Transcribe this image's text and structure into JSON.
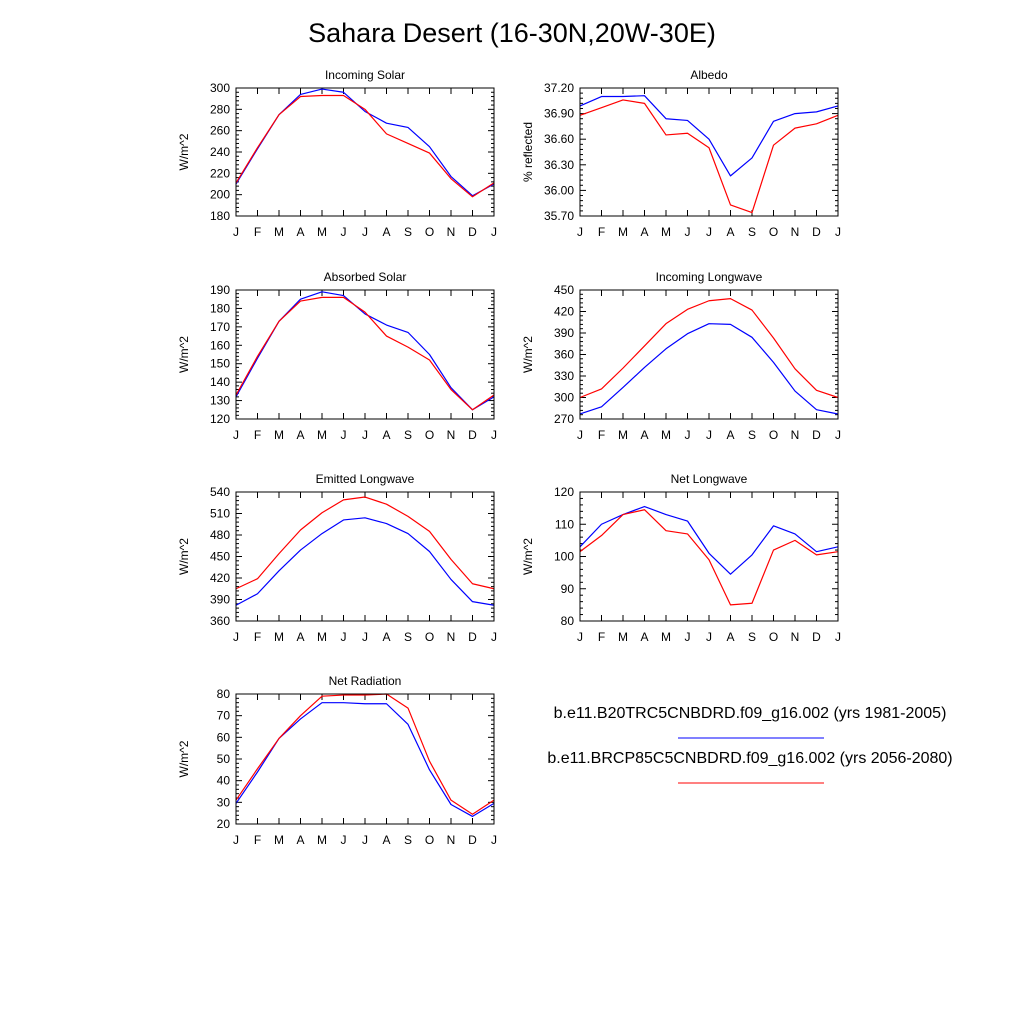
{
  "title": "Sahara Desert (16-30N,20W-30E)",
  "colors": {
    "series1": "#0000ff",
    "series2": "#ff0000",
    "axis": "#000000"
  },
  "legend": {
    "items": [
      {
        "label": "b.e11.B20TRC5CNBDRD.f09_g16.002 (yrs 1981-2005)",
        "color": "#0000ff"
      },
      {
        "label": "b.e11.BRCP85C5CNBDRD.f09_g16.002 (yrs 2056-2080)",
        "color": "#ff0000"
      }
    ]
  },
  "chart_data": [
    {
      "type": "line",
      "title": "Incoming Solar",
      "ylabel": "W/m^2",
      "x": [
        "J",
        "F",
        "M",
        "A",
        "M",
        "J",
        "J",
        "A",
        "S",
        "O",
        "N",
        "D",
        "J"
      ],
      "ylim": [
        180,
        300
      ],
      "yticks": [
        "180",
        "200",
        "220",
        "240",
        "260",
        "280",
        "300"
      ],
      "series": [
        {
          "name": "b.e11.B20TRC5CNBDRD.f09_g16.002 (yrs 1981-2005)",
          "color": "#0000ff",
          "values": [
            210,
            243,
            275,
            294,
            299,
            296,
            278,
            267,
            263,
            245,
            217,
            199,
            210
          ]
        },
        {
          "name": "b.e11.BRCP85C5CNBDRD.f09_g16.002 (yrs 2056-2080)",
          "color": "#ff0000",
          "values": [
            211,
            244,
            275,
            292,
            293,
            293,
            280,
            257,
            248,
            239,
            215,
            198,
            211
          ]
        }
      ]
    },
    {
      "type": "line",
      "title": "Albedo",
      "ylabel": "% reflected",
      "x": [
        "J",
        "F",
        "M",
        "A",
        "M",
        "J",
        "J",
        "A",
        "S",
        "O",
        "N",
        "D",
        "J"
      ],
      "ylim": [
        35.7,
        37.2
      ],
      "yticks": [
        "35.70",
        "36.00",
        "36.30",
        "36.60",
        "36.90",
        "37.20"
      ],
      "series": [
        {
          "name": "b.e11.B20TRC5CNBDRD.f09_g16.002 (yrs 1981-2005)",
          "color": "#0000ff",
          "values": [
            36.99,
            37.1,
            37.1,
            37.11,
            36.84,
            36.82,
            36.6,
            36.17,
            36.38,
            36.81,
            36.9,
            36.92,
            36.99
          ]
        },
        {
          "name": "b.e11.BRCP85C5CNBDRD.f09_g16.002 (yrs 2056-2080)",
          "color": "#ff0000",
          "values": [
            36.88,
            36.97,
            37.06,
            37.02,
            36.65,
            36.67,
            36.5,
            35.83,
            35.74,
            36.53,
            36.73,
            36.78,
            36.88
          ]
        }
      ]
    },
    {
      "type": "line",
      "title": "Absorbed Solar",
      "ylabel": "W/m^2",
      "x": [
        "J",
        "F",
        "M",
        "A",
        "M",
        "J",
        "J",
        "A",
        "S",
        "O",
        "N",
        "D",
        "J"
      ],
      "ylim": [
        120,
        190
      ],
      "yticks": [
        "120",
        "130",
        "140",
        "150",
        "160",
        "170",
        "180",
        "190"
      ],
      "series": [
        {
          "name": "b.e11.B20TRC5CNBDRD.f09_g16.002 (yrs 1981-2005)",
          "color": "#0000ff",
          "values": [
            132,
            153,
            173,
            185,
            189,
            187,
            177,
            171,
            167,
            155,
            137,
            125,
            132
          ]
        },
        {
          "name": "b.e11.BRCP85C5CNBDRD.f09_g16.002 (yrs 2056-2080)",
          "color": "#ff0000",
          "values": [
            133,
            154,
            173,
            184,
            186,
            186,
            178,
            165,
            159,
            152,
            136,
            125,
            133
          ]
        }
      ]
    },
    {
      "type": "line",
      "title": "Incoming Longwave",
      "ylabel": "W/m^2",
      "x": [
        "J",
        "F",
        "M",
        "A",
        "M",
        "J",
        "J",
        "A",
        "S",
        "O",
        "N",
        "D",
        "J"
      ],
      "ylim": [
        270,
        450
      ],
      "yticks": [
        "270",
        "300",
        "330",
        "360",
        "390",
        "420",
        "450"
      ],
      "series": [
        {
          "name": "b.e11.B20TRC5CNBDRD.f09_g16.002 (yrs 1981-2005)",
          "color": "#0000ff",
          "values": [
            277,
            287,
            314,
            342,
            368,
            389,
            403,
            402,
            384,
            349,
            309,
            283,
            277
          ]
        },
        {
          "name": "b.e11.BRCP85C5CNBDRD.f09_g16.002 (yrs 2056-2080)",
          "color": "#ff0000",
          "values": [
            300,
            312,
            341,
            372,
            403,
            423,
            435,
            438,
            422,
            383,
            340,
            310,
            300
          ]
        }
      ]
    },
    {
      "type": "line",
      "title": "Emitted Longwave",
      "ylabel": "W/m^2",
      "x": [
        "J",
        "F",
        "M",
        "A",
        "M",
        "J",
        "J",
        "A",
        "S",
        "O",
        "N",
        "D",
        "J"
      ],
      "ylim": [
        360,
        540
      ],
      "yticks": [
        "360",
        "390",
        "420",
        "450",
        "480",
        "510",
        "540"
      ],
      "series": [
        {
          "name": "b.e11.B20TRC5CNBDRD.f09_g16.002 (yrs 1981-2005)",
          "color": "#0000ff",
          "values": [
            382,
            398,
            430,
            459,
            482,
            501,
            504,
            496,
            482,
            457,
            418,
            387,
            382
          ]
        },
        {
          "name": "b.e11.BRCP85C5CNBDRD.f09_g16.002 (yrs 2056-2080)",
          "color": "#ff0000",
          "values": [
            405,
            419,
            454,
            487,
            511,
            529,
            533,
            523,
            506,
            485,
            446,
            412,
            405
          ]
        }
      ]
    },
    {
      "type": "line",
      "title": "Net Longwave",
      "ylabel": "W/m^2",
      "x": [
        "J",
        "F",
        "M",
        "A",
        "M",
        "J",
        "J",
        "A",
        "S",
        "O",
        "N",
        "D",
        "J"
      ],
      "ylim": [
        80,
        120
      ],
      "yticks": [
        "80",
        "90",
        "100",
        "110",
        "120"
      ],
      "series": [
        {
          "name": "b.e11.B20TRC5CNBDRD.f09_g16.002 (yrs 1981-2005)",
          "color": "#0000ff",
          "values": [
            103,
            110,
            113,
            115.5,
            113,
            111,
            101,
            94.5,
            100.5,
            109.5,
            107,
            101.5,
            103
          ]
        },
        {
          "name": "b.e11.BRCP85C5CNBDRD.f09_g16.002 (yrs 2056-2080)",
          "color": "#ff0000",
          "values": [
            101.5,
            106.5,
            113,
            114.5,
            108,
            107,
            99,
            85,
            85.5,
            102,
            105,
            100.5,
            101.5
          ]
        }
      ]
    },
    {
      "type": "line",
      "title": "Net Radiation",
      "ylabel": "W/m^2",
      "x": [
        "J",
        "F",
        "M",
        "A",
        "M",
        "J",
        "J",
        "A",
        "S",
        "O",
        "N",
        "D",
        "J"
      ],
      "ylim": [
        20,
        80
      ],
      "yticks": [
        "20",
        "30",
        "40",
        "50",
        "60",
        "70",
        "80"
      ],
      "series": [
        {
          "name": "b.e11.B20TRC5CNBDRD.f09_g16.002 (yrs 1981-2005)",
          "color": "#0000ff",
          "values": [
            29.5,
            44,
            59.5,
            68.5,
            76,
            76,
            75.5,
            75.5,
            66,
            45,
            29,
            23.5,
            29.5
          ]
        },
        {
          "name": "b.e11.BRCP85C5CNBDRD.f09_g16.002 (yrs 2056-2080)",
          "color": "#ff0000",
          "values": [
            31,
            45.5,
            59.5,
            70,
            79,
            79.5,
            79.5,
            80,
            73.5,
            49,
            31,
            24.5,
            31
          ]
        }
      ]
    }
  ]
}
